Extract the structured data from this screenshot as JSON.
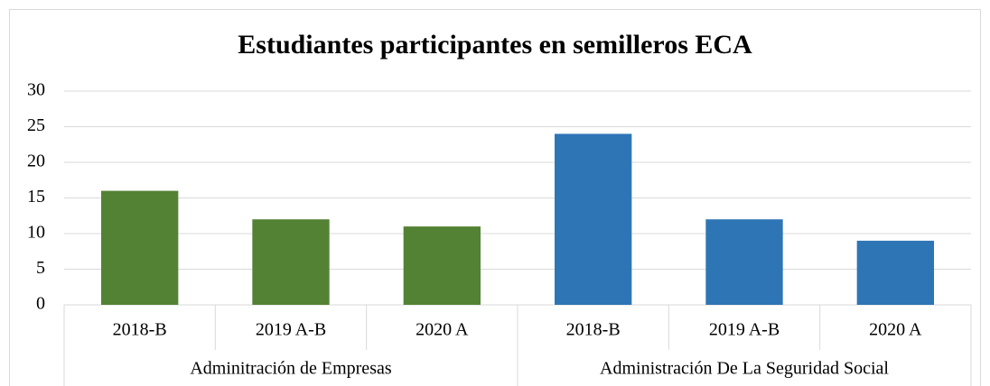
{
  "chart_data": {
    "type": "bar",
    "title": "Estudiantes participantes en  semilleros ECA",
    "groups": [
      {
        "name": "Adminitración de Empresas",
        "color": "#548235",
        "categories": [
          "2018-B",
          "2019 A-B",
          "2020 A"
        ],
        "values": [
          16,
          12,
          11
        ]
      },
      {
        "name": "Administración De La Seguridad Social",
        "color": "#2e75b6",
        "categories": [
          "2018-B",
          "2019 A-B",
          "2020 A"
        ],
        "values": [
          24,
          12,
          9
        ]
      }
    ],
    "ylim": [
      0,
      30
    ],
    "yticks": [
      0,
      5,
      10,
      15,
      20,
      25,
      30
    ],
    "grid": true
  }
}
